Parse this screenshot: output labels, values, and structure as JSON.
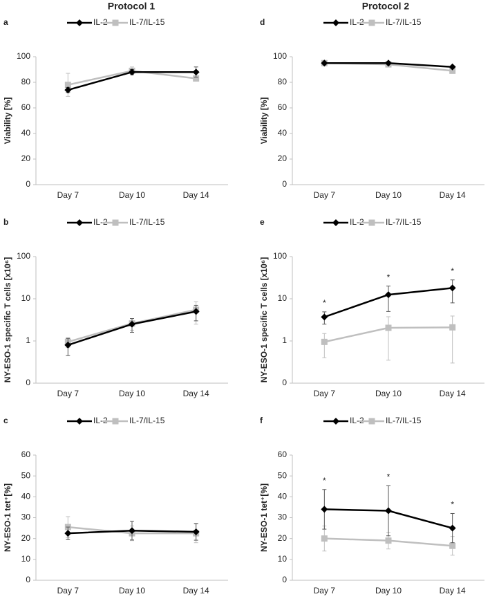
{
  "headers": [
    "Protocol 1",
    "Protocol 2"
  ],
  "chart_data": [
    {
      "type": "line",
      "label": "a",
      "ylabel": "Viability [%]",
      "categories": [
        "Day 7",
        "Day 10",
        "Day 14"
      ],
      "ylim": [
        0,
        100
      ],
      "yticks": [
        0,
        20,
        40,
        60,
        80,
        100
      ],
      "series": [
        {
          "name": "IL-2",
          "color": "#000000",
          "marker": "diamond",
          "values": [
            74,
            88,
            88
          ],
          "errors": [
            2,
            2,
            4
          ]
        },
        {
          "name": "IL-7/IL-15",
          "color": "#bfbfbf",
          "marker": "square",
          "values": [
            78,
            89,
            83
          ],
          "errors": [
            9,
            3,
            2
          ]
        }
      ]
    },
    {
      "type": "line",
      "label": "b",
      "ylabel": "NY-ESO-1 specific T cells [x10⁶]",
      "categories": [
        "Day 7",
        "Day 10",
        "Day 14"
      ],
      "log": true,
      "ylim": [
        0.1,
        100
      ],
      "yticks": [
        {
          "value": 0.1,
          "label": "0"
        },
        1,
        10,
        100
      ],
      "series": [
        {
          "name": "IL-2",
          "color": "#000000",
          "marker": "diamond",
          "values": [
            0.8,
            2.5,
            5
          ],
          "errors": [
            0.35,
            0.9,
            2
          ]
        },
        {
          "name": "IL-7/IL-15",
          "color": "#bfbfbf",
          "marker": "square",
          "values": [
            0.95,
            2.6,
            5.5
          ],
          "errors": [
            0.25,
            0.8,
            3
          ]
        }
      ]
    },
    {
      "type": "line",
      "label": "c",
      "ylabel": "NY-ESO-1 tet⁺[%]",
      "categories": [
        "Day 7",
        "Day 10",
        "Day 14"
      ],
      "ylim": [
        0,
        60
      ],
      "yticks": [
        0,
        10,
        20,
        30,
        40,
        50,
        60
      ],
      "series": [
        {
          "name": "IL-2",
          "color": "#000000",
          "marker": "diamond",
          "values": [
            22.5,
            23.8,
            23.2
          ],
          "errors": [
            3,
            4.5,
            4
          ]
        },
        {
          "name": "IL-7/IL-15",
          "color": "#bfbfbf",
          "marker": "square",
          "values": [
            25.5,
            22.5,
            22.5
          ],
          "errors": [
            5,
            3.5,
            4.5
          ]
        }
      ]
    },
    {
      "type": "line",
      "label": "d",
      "ylabel": "Viability [%]",
      "categories": [
        "Day 7",
        "Day 10",
        "Day 14"
      ],
      "ylim": [
        0,
        100
      ],
      "yticks": [
        0,
        20,
        40,
        60,
        80,
        100
      ],
      "series": [
        {
          "name": "IL-2",
          "color": "#000000",
          "marker": "diamond",
          "values": [
            95,
            95,
            92
          ],
          "errors": [
            1,
            1,
            1
          ]
        },
        {
          "name": "IL-7/IL-15",
          "color": "#bfbfbf",
          "marker": "square",
          "values": [
            95,
            94,
            89
          ],
          "errors": [
            1,
            1,
            2
          ]
        }
      ]
    },
    {
      "type": "line",
      "label": "e",
      "ylabel": "NY-ESO-1 specific T cells [x10⁶]",
      "categories": [
        "Day 7",
        "Day 10",
        "Day 14"
      ],
      "log": true,
      "ylim": [
        0.1,
        100
      ],
      "yticks": [
        {
          "value": 0.1,
          "label": "0"
        },
        1,
        10,
        100
      ],
      "significance": [
        "*",
        "*",
        "*"
      ],
      "series": [
        {
          "name": "IL-2",
          "color": "#000000",
          "marker": "diamond",
          "values": [
            3.7,
            12.5,
            18
          ],
          "errors": [
            1.2,
            7.5,
            10
          ]
        },
        {
          "name": "IL-7/IL-15",
          "color": "#bfbfbf",
          "marker": "square",
          "values": [
            0.95,
            2.05,
            2.1
          ],
          "errors": [
            0.55,
            1.7,
            1.8
          ]
        }
      ]
    },
    {
      "type": "line",
      "label": "f",
      "ylabel": "NY-ESO-1 tet⁺[%]",
      "categories": [
        "Day 7",
        "Day 10",
        "Day 14"
      ],
      "ylim": [
        0,
        60
      ],
      "yticks": [
        0,
        10,
        20,
        30,
        40,
        50,
        60
      ],
      "significance": [
        "*",
        "*",
        "*"
      ],
      "series": [
        {
          "name": "IL-2",
          "color": "#000000",
          "marker": "diamond",
          "values": [
            34,
            33.3,
            25
          ],
          "errors": [
            9.5,
            12,
            7
          ]
        },
        {
          "name": "IL-7/IL-15",
          "color": "#bfbfbf",
          "marker": "square",
          "values": [
            20,
            19,
            16.5
          ],
          "errors": [
            6,
            4,
            4.5
          ]
        }
      ]
    }
  ]
}
